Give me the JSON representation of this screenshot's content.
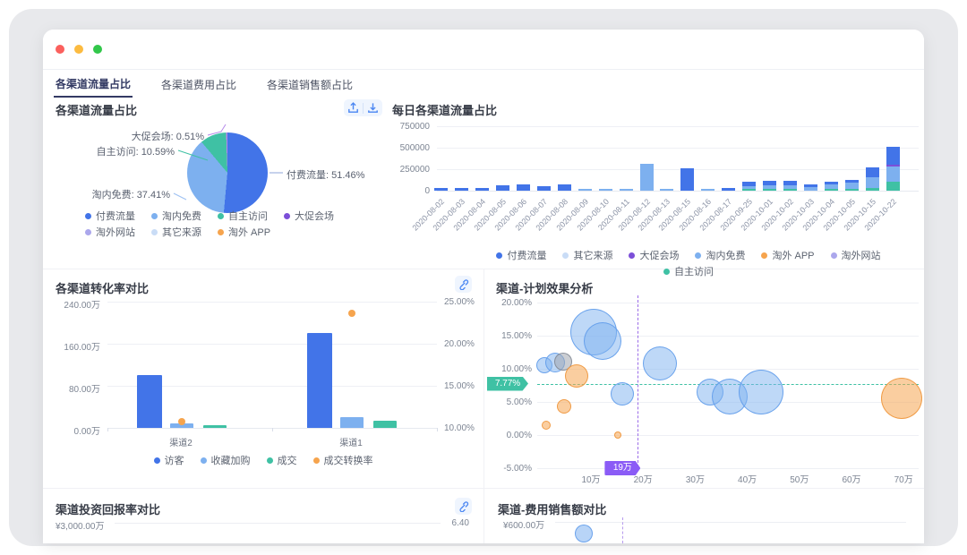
{
  "window": {
    "traffic_lights": [
      "close",
      "minimize",
      "zoom"
    ],
    "tabs": [
      {
        "label": "各渠道流量占比",
        "active": true
      },
      {
        "label": "各渠道费用占比",
        "active": false
      },
      {
        "label": "各渠道销售额占比",
        "active": false
      }
    ]
  },
  "colors": {
    "paid": "#4274E8",
    "taonei": "#7DB0EF",
    "zizhu": "#3FC1A4",
    "dacu": "#7C4FD8",
    "dacu_light": "#B588EA",
    "waiweb": "#ABA7EC",
    "other": "#C9DCF6",
    "app": "#F6A44D",
    "accent_blue": "#4A86F2",
    "teal_line": "#3FC1A4",
    "purple_line": "#9B6CE8",
    "traffic_red": "#FB605D",
    "traffic_yellow": "#FCBB40",
    "traffic_green": "#32C74A"
  },
  "chart_data": [
    {
      "type": "pie",
      "title": "各渠道流量占比",
      "slices": [
        {
          "label": "付费流量",
          "value": 51.46,
          "color": "paid"
        },
        {
          "label": "淘内免费",
          "value": 37.41,
          "color": "taonei"
        },
        {
          "label": "自主访问",
          "value": 10.59,
          "color": "zizhu"
        },
        {
          "label": "大促会场",
          "value": 0.51,
          "color": "dacu_light"
        }
      ],
      "callouts": [
        "大促会场: 0.51%",
        "自主访问: 10.59%",
        "淘内免费: 37.41%",
        "付费流量: 51.46%"
      ],
      "legend": [
        {
          "label": "付费流量",
          "color": "paid"
        },
        {
          "label": "淘内免费",
          "color": "taonei"
        },
        {
          "label": "自主访问",
          "color": "zizhu"
        },
        {
          "label": "大促会场",
          "color": "dacu"
        },
        {
          "label": "淘外网站",
          "color": "waiweb"
        },
        {
          "label": "其它来源",
          "color": "other"
        },
        {
          "label": "淘外 APP",
          "color": "app"
        }
      ]
    },
    {
      "type": "bar",
      "stacked": true,
      "title": "每日各渠道流量占比",
      "y_ticks": [
        "750000",
        "500000",
        "250000",
        "0"
      ],
      "y_max": 750000,
      "legend": [
        {
          "label": "付费流量",
          "color": "paid"
        },
        {
          "label": "其它来源",
          "color": "other"
        },
        {
          "label": "大促会场",
          "color": "dacu"
        },
        {
          "label": "淘内免费",
          "color": "taonei"
        },
        {
          "label": "淘外 APP",
          "color": "app"
        },
        {
          "label": "淘外网站",
          "color": "waiweb"
        },
        {
          "label": "自主访问",
          "color": "zizhu"
        }
      ],
      "bars": [
        {
          "date": "2020-08-02",
          "zizhu": 0,
          "taonei": 0,
          "dacu": 0,
          "paid": 30000
        },
        {
          "date": "2020-08-03",
          "zizhu": 0,
          "taonei": 0,
          "dacu": 0,
          "paid": 32000
        },
        {
          "date": "2020-08-04",
          "zizhu": 0,
          "taonei": 0,
          "dacu": 0,
          "paid": 35000
        },
        {
          "date": "2020-08-05",
          "zizhu": 0,
          "taonei": 0,
          "dacu": 0,
          "paid": 60000
        },
        {
          "date": "2020-08-06",
          "zizhu": 0,
          "taonei": 0,
          "dacu": 0,
          "paid": 70000
        },
        {
          "date": "2020-08-07",
          "zizhu": 0,
          "taonei": 0,
          "dacu": 0,
          "paid": 55000
        },
        {
          "date": "2020-08-08",
          "zizhu": 0,
          "taonei": 0,
          "dacu": 0,
          "paid": 70000
        },
        {
          "date": "2020-08-09",
          "zizhu": 0,
          "taonei": 15000,
          "dacu": 0,
          "paid": 0
        },
        {
          "date": "2020-08-10",
          "zizhu": 0,
          "taonei": 15000,
          "dacu": 0,
          "paid": 0
        },
        {
          "date": "2020-08-11",
          "zizhu": 0,
          "taonei": 18000,
          "dacu": 0,
          "paid": 0
        },
        {
          "date": "2020-08-12",
          "zizhu": 0,
          "taonei": 310000,
          "dacu": 0,
          "paid": 0
        },
        {
          "date": "2020-08-13",
          "zizhu": 0,
          "taonei": 20000,
          "dacu": 0,
          "paid": 0
        },
        {
          "date": "2020-08-15",
          "zizhu": 0,
          "taonei": 0,
          "dacu": 0,
          "paid": 260000
        },
        {
          "date": "2020-08-16",
          "zizhu": 0,
          "taonei": 18000,
          "dacu": 0,
          "paid": 0
        },
        {
          "date": "2020-08-17",
          "zizhu": 0,
          "taonei": 0,
          "dacu": 0,
          "paid": 30000
        },
        {
          "date": "2020-09-25",
          "zizhu": 15000,
          "taonei": 30000,
          "dacu": 0,
          "paid": 55000
        },
        {
          "date": "2020-10-01",
          "zizhu": 8000,
          "taonei": 37000,
          "dacu": 0,
          "paid": 55000
        },
        {
          "date": "2020-10-02",
          "zizhu": 12000,
          "taonei": 43000,
          "dacu": 0,
          "paid": 55000
        },
        {
          "date": "2020-10-03",
          "zizhu": 0,
          "taonei": 45000,
          "dacu": 0,
          "paid": 30000
        },
        {
          "date": "2020-10-04",
          "zizhu": 8000,
          "taonei": 55000,
          "dacu": 0,
          "paid": 32000
        },
        {
          "date": "2020-10-05",
          "zizhu": 12000,
          "taonei": 75000,
          "dacu": 0,
          "paid": 28000
        },
        {
          "date": "2020-10-15",
          "zizhu": 30000,
          "taonei": 130000,
          "dacu": 0,
          "paid": 110000
        },
        {
          "date": "2020-10-22",
          "zizhu": 100000,
          "taonei": 185000,
          "dacu": 12000,
          "paid": 205000
        }
      ]
    },
    {
      "type": "bar",
      "title": "各渠道转化率对比",
      "categories": [
        "渠道2",
        "渠道1"
      ],
      "left_ticks": [
        {
          "label": "240.00万",
          "value": 240
        },
        {
          "label": "160.00万",
          "value": 160
        },
        {
          "label": "80.00万",
          "value": 80
        },
        {
          "label": "0.00万",
          "value": 0
        }
      ],
      "right_ticks": [
        {
          "label": "25.00%",
          "value": 25
        },
        {
          "label": "20.00%",
          "value": 20
        },
        {
          "label": "15.00%",
          "value": 15
        },
        {
          "label": "10.00%",
          "value": 10
        }
      ],
      "series": [
        {
          "name": "访客",
          "color": "paid",
          "kind": "bar",
          "values": [
            100,
            180
          ]
        },
        {
          "name": "收藏加购",
          "color": "taonei",
          "kind": "bar",
          "values": [
            8,
            20
          ]
        },
        {
          "name": "成交",
          "color": "zizhu",
          "kind": "bar",
          "values": [
            5,
            13
          ]
        },
        {
          "name": "成交转换率",
          "color": "app",
          "kind": "scatter",
          "values": [
            10.7,
            23.6
          ]
        }
      ]
    },
    {
      "type": "scatter",
      "title": "渠道-计划效果分析",
      "x_ticks": [
        {
          "label": "10万",
          "value": 10
        },
        {
          "label": "20万",
          "value": 20
        },
        {
          "label": "30万",
          "value": 30
        },
        {
          "label": "40万",
          "value": 40
        },
        {
          "label": "50万",
          "value": 50
        },
        {
          "label": "60万",
          "value": 60
        },
        {
          "label": "70万",
          "value": 70
        }
      ],
      "y_ticks": [
        {
          "label": "20.00%",
          "value": 20
        },
        {
          "label": "15.00%",
          "value": 15
        },
        {
          "label": "10.00%",
          "value": 10
        },
        {
          "label": "5.00%",
          "value": 5
        },
        {
          "label": "0.00%",
          "value": 0
        },
        {
          "label": "-5.00%",
          "value": -5
        }
      ],
      "markers": {
        "h_line": {
          "label": "7.77%",
          "value": 7.77
        },
        "v_line": {
          "label": "19万",
          "value": 19
        }
      },
      "series": [
        {
          "name": "blue-bubbles",
          "fill": "rgba(126,177,240,0.50)",
          "stroke": "rgba(96,156,235,0.9)",
          "points": [
            {
              "x": 1.1,
              "y": 10.5,
              "r": 9
            },
            {
              "x": 3.1,
              "y": 10.9,
              "r": 11
            },
            {
              "x": 10.5,
              "y": 15.6,
              "r": 26
            },
            {
              "x": 12.2,
              "y": 14.2,
              "r": 21
            },
            {
              "x": 16,
              "y": 6.2,
              "r": 13
            },
            {
              "x": 23.2,
              "y": 10.8,
              "r": 19
            },
            {
              "x": 32.9,
              "y": 6.5,
              "r": 15
            },
            {
              "x": 36.6,
              "y": 5.8,
              "r": 20
            },
            {
              "x": 42.6,
              "y": 6.5,
              "r": 25
            }
          ]
        },
        {
          "name": "gray-bubbles",
          "fill": "rgba(160,165,175,0.55)",
          "stroke": "rgba(130,135,148,0.9)",
          "points": [
            {
              "x": 4.7,
              "y": 11.1,
              "r": 10
            }
          ]
        },
        {
          "name": "orange-bubbles",
          "fill": "rgba(246,166,82,0.55)",
          "stroke": "rgba(240,150,60,0.9)",
          "points": [
            {
              "x": 7.3,
              "y": 8.9,
              "r": 13
            },
            {
              "x": 4.8,
              "y": 4.3,
              "r": 8
            },
            {
              "x": 1.4,
              "y": 1.5,
              "r": 5
            },
            {
              "x": 15.2,
              "y": 0,
              "r": 4
            },
            {
              "x": 69.6,
              "y": 5.6,
              "r": 23
            }
          ]
        }
      ]
    },
    {
      "type": "bar",
      "title": "渠道投资回报率对比",
      "left_tick": "¥3,000.00万",
      "right_tick": "6.40",
      "partial": true
    },
    {
      "type": "scatter",
      "title": "渠道-费用销售额对比",
      "left_tick": "¥600.00万",
      "partial": true
    }
  ]
}
